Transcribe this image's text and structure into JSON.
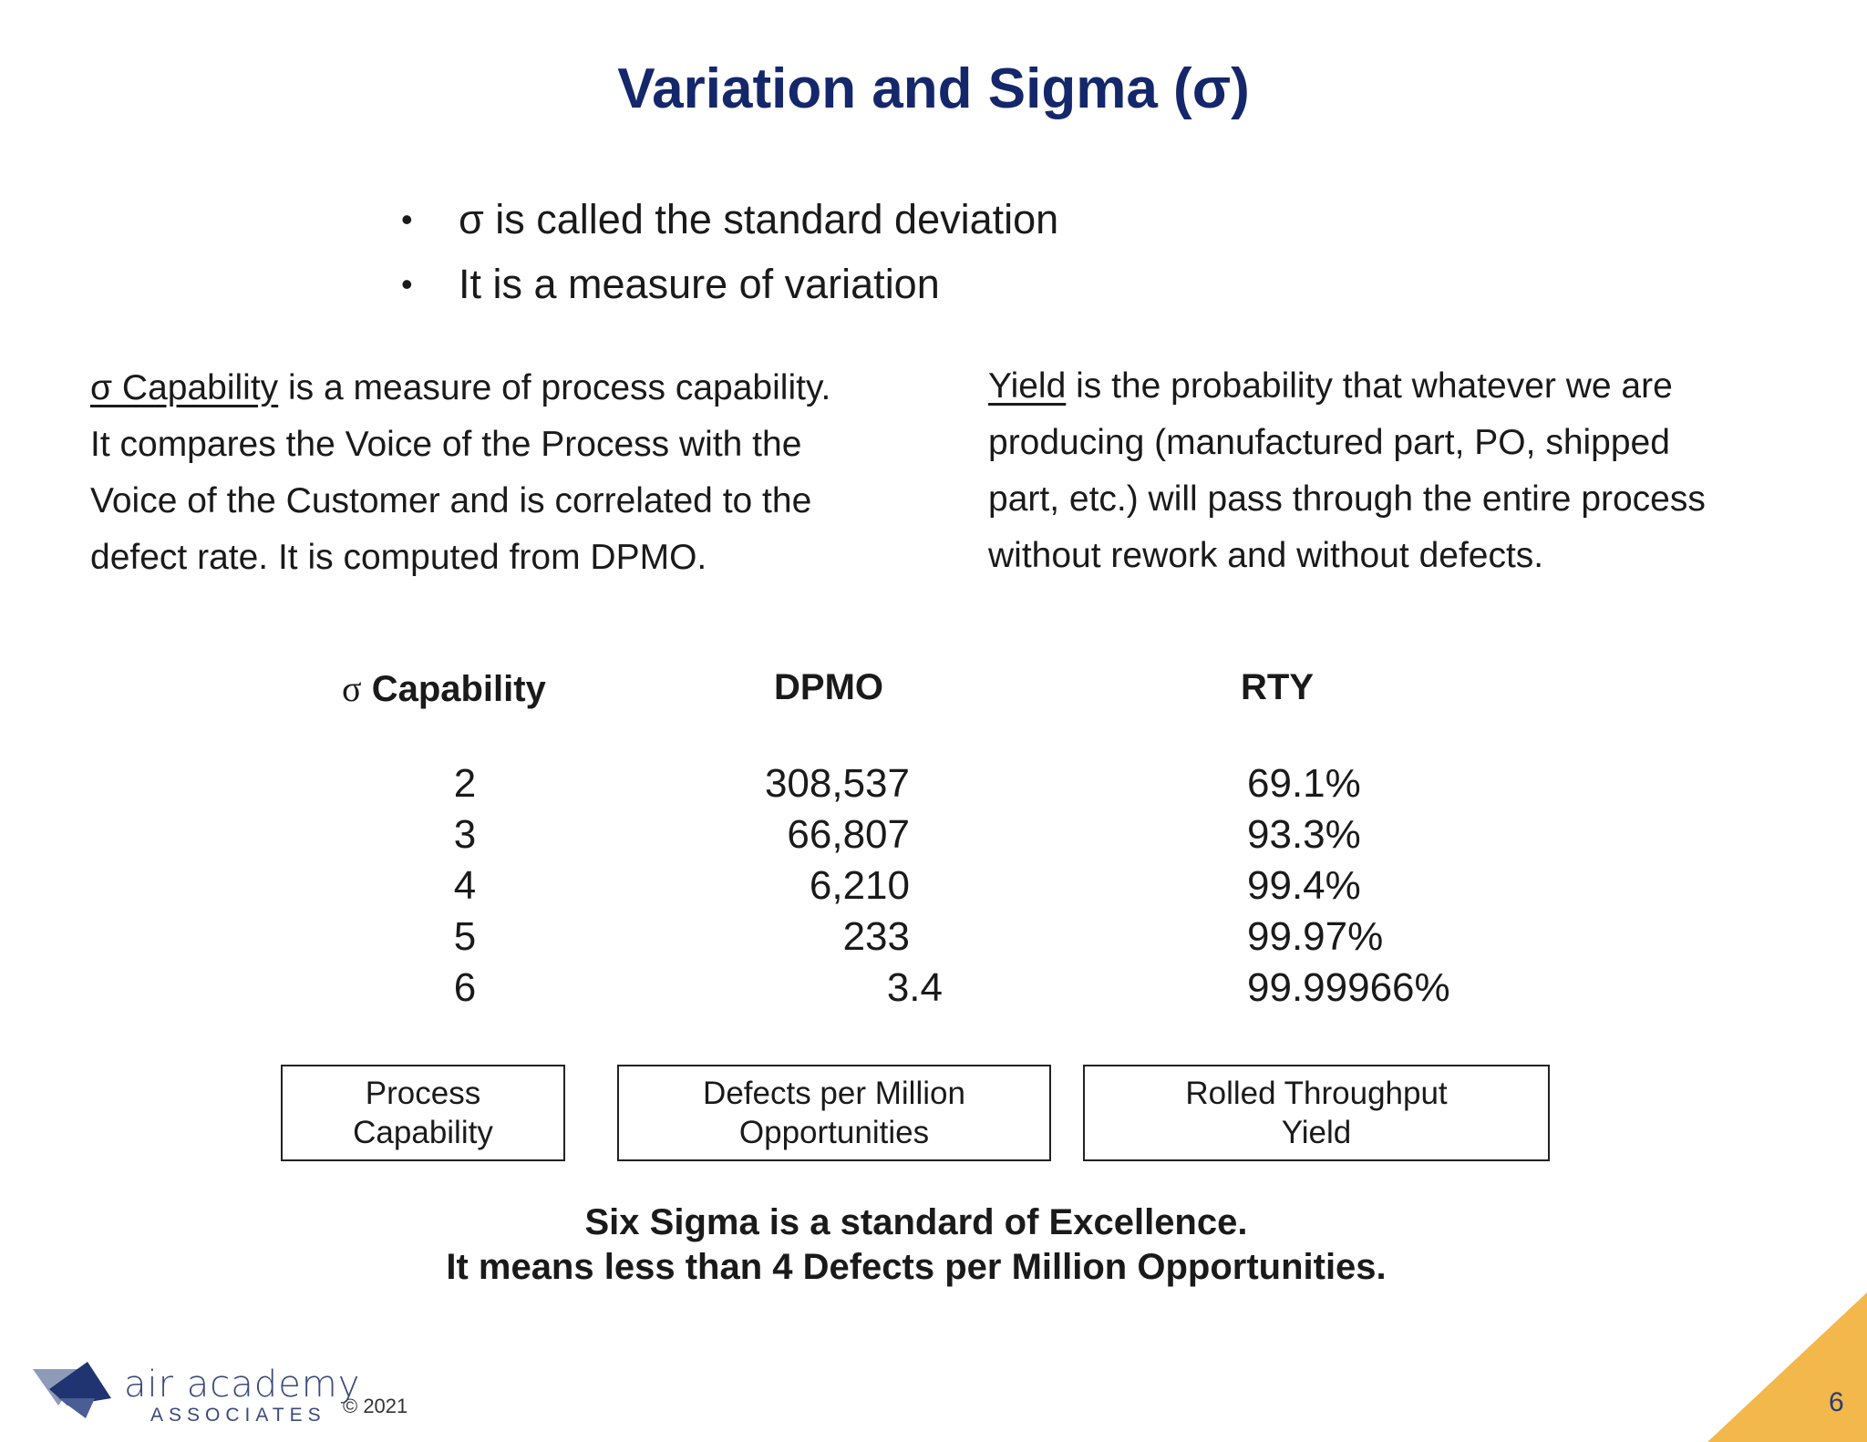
{
  "title": "Variation and Sigma (σ)",
  "bullets": [
    "σ is called the standard deviation",
    "It is a measure of variation"
  ],
  "bullet_glyph": "•",
  "left_paragraph": {
    "term": "σ Capability",
    "lines": [
      " is a measure of process capability.",
      "It compares the Voice of the Process with the",
      "Voice of the Customer and is correlated to the",
      "defect rate. It is computed from DPMO."
    ]
  },
  "right_paragraph": {
    "term": "Yield",
    "lines": [
      " is the probability that whatever we are",
      "producing (manufactured part, PO, shipped",
      "part, etc.) will pass through the entire process",
      "without rework and without defects."
    ]
  },
  "table": {
    "headers": {
      "sigma_symbol": "σ",
      "sigma_label": "Capability",
      "dpmo": "DPMO",
      "rty": "RTY"
    },
    "sigma": [
      "2",
      "3",
      "4",
      "5",
      "6"
    ],
    "dpmo": [
      "308,537",
      "66,807",
      "6,210",
      "233",
      "3.4"
    ],
    "rty": [
      "69.1%",
      "93.3%",
      "99.4%",
      "99.97%",
      "99.99966%"
    ]
  },
  "definitions": [
    [
      "Process",
      "Capability"
    ],
    [
      "Defects per Million",
      "Opportunities"
    ],
    [
      "Rolled Throughput",
      "Yield"
    ]
  ],
  "summary": [
    "Six Sigma is a standard of Excellence.",
    "It means less than 4 Defects per Million Opportunities."
  ],
  "footer": {
    "logo_word": "air academy",
    "logo_sub": "ASSOCIATES",
    "copyright": "© 2021",
    "page_number": "6"
  },
  "colors": {
    "title": "#15276b",
    "logo": "#3a4a7a",
    "corner": "#f2b84b"
  }
}
